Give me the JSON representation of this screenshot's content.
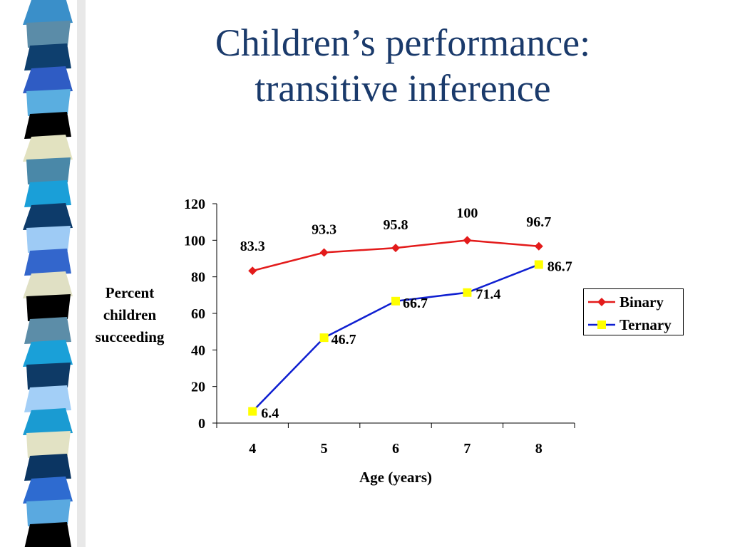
{
  "slide": {
    "title_lines": [
      "Children’s performance:",
      "transitive inference"
    ],
    "stripe_colors": [
      "#3a8fc9",
      "#5b8ca8",
      "#0e3f6e",
      "#2f5cc4",
      "#5aaee0",
      "#000000",
      "#e2e2c0",
      "#4a88a8",
      "#1a9fd8",
      "#0d3b6a",
      "#9ecbf5",
      "#3366cc",
      "#e0e0c4",
      "#000000",
      "#5c8da8",
      "#1aa0d8",
      "#0e3a66",
      "#a3cff7",
      "#1a9bd2",
      "#e2e2c4",
      "#0b3562",
      "#2e6bd0",
      "#5aa9e0",
      "#000000"
    ]
  },
  "chart_data": {
    "type": "line",
    "x": [
      4,
      5,
      6,
      7,
      8
    ],
    "categories": [
      "4",
      "5",
      "6",
      "7",
      "8"
    ],
    "series": [
      {
        "name": "Binary",
        "values": [
          83.3,
          93.3,
          95.8,
          100,
          96.7
        ],
        "labels": [
          "83.3",
          "93.3",
          "95.8",
          "100",
          "96.7"
        ],
        "color": "#e31b1b",
        "marker": "diamond"
      },
      {
        "name": "Ternary",
        "values": [
          6.4,
          46.7,
          66.7,
          71.4,
          86.7
        ],
        "labels": [
          "6.4",
          "46.7",
          "66.7",
          "71.4",
          "86.7"
        ],
        "color": "#0f1fd1",
        "marker": "square",
        "marker_color": "#ffff00"
      }
    ],
    "ylim": [
      0,
      120
    ],
    "yticks": [
      "0",
      "20",
      "40",
      "60",
      "80",
      "100",
      "120"
    ],
    "ylabel_lines": [
      "Percent",
      "children",
      "succeeding"
    ],
    "xlabel": "Age (years)",
    "grid": false,
    "legend_position": "right"
  }
}
